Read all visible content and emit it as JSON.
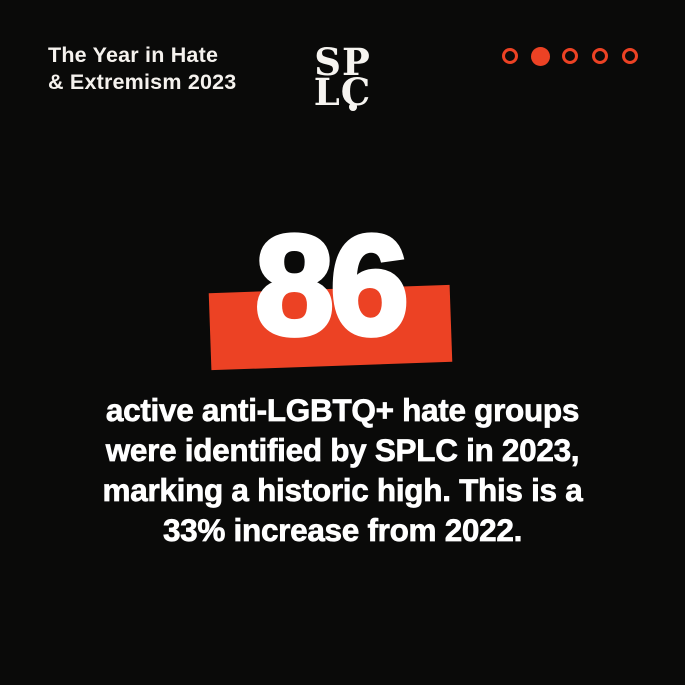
{
  "page": {
    "background": "#0a0a09",
    "accent": "#ec4224",
    "text_color": "#ffffff",
    "title_color": "#f5f2ee"
  },
  "header": {
    "title": {
      "line1": "The Year in Hate",
      "line2": "& Extremism 2023"
    },
    "logo": {
      "line1": "SP",
      "line2": "LC"
    },
    "pagination": {
      "count": 5,
      "active_index": 1
    }
  },
  "stat": {
    "value": "86",
    "description_lines": [
      "active anti-LGBTQ+ hate groups",
      "were identified by SPLC in 2023,",
      "marking a historic high. This is a",
      "33% increase from 2022."
    ]
  }
}
